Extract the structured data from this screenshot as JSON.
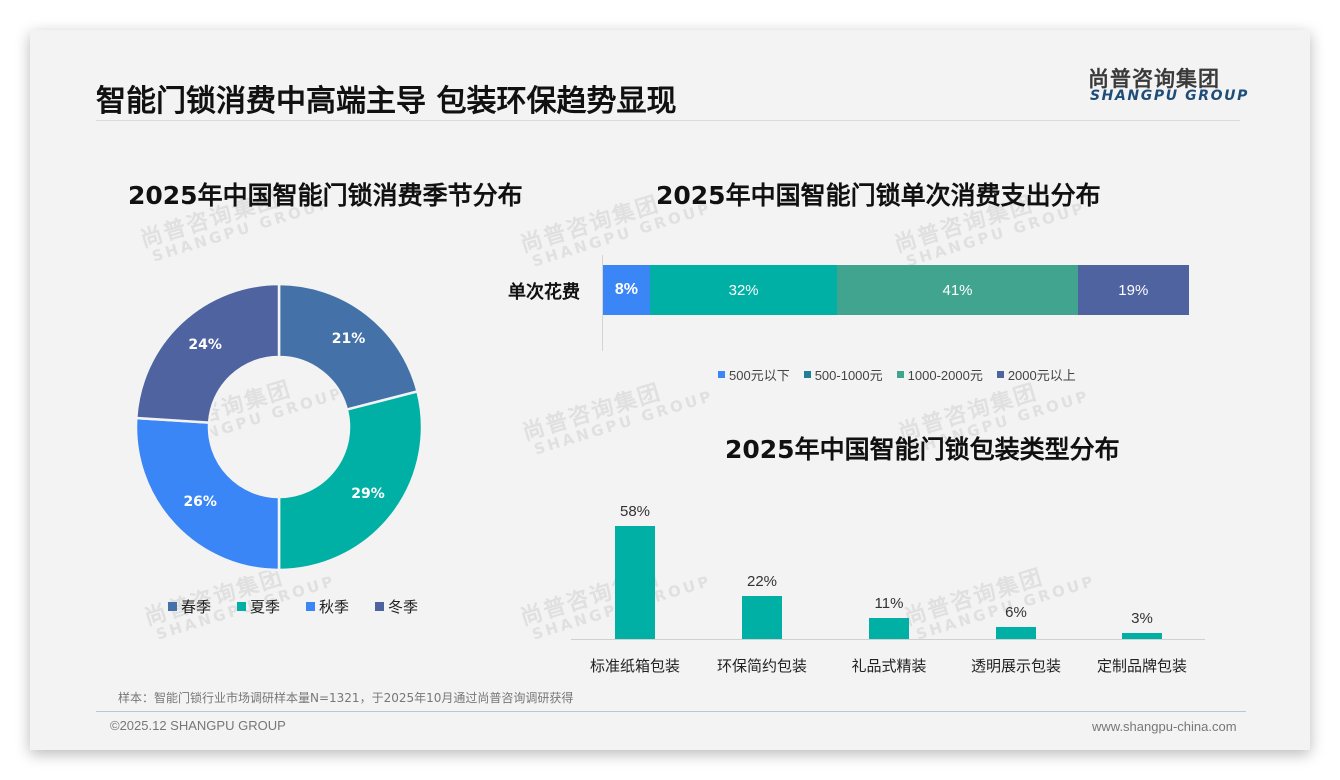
{
  "header": {
    "title": "智能门锁消费中高端主导 包装环保趋势显现",
    "logo_cn": "尚普咨询集团",
    "logo_en": "SHANGPU GROUP"
  },
  "watermark": {
    "cn": "尚普咨询集团",
    "en": "SHANGPU GROUP"
  },
  "colors": {
    "spring": "#4472a8",
    "summer": "#00b0a5",
    "autumn": "#3b86f7",
    "winter": "#4e63a0",
    "under500": "#3b86f7",
    "r500_1000": "#00b0a5",
    "r500_1000_legend": "#1f7f96",
    "r1000_2000": "#40a48f",
    "over2000": "#4e63a0",
    "packaging_bar": "#00b0a5"
  },
  "chart_data": [
    {
      "type": "pie",
      "variant": "donut",
      "title": "2025年中国智能门锁消费季节分布",
      "categories": [
        "春季",
        "夏季",
        "秋季",
        "冬季"
      ],
      "values": [
        21,
        29,
        26,
        24
      ],
      "labels": [
        "21%",
        "29%",
        "26%",
        "24%"
      ],
      "unit": "%",
      "legend_position": "bottom"
    },
    {
      "type": "bar",
      "orientation": "horizontal",
      "stacked": true,
      "title": "2025年中国智能门锁单次消费支出分布",
      "categories": [
        "单次花费"
      ],
      "series": [
        {
          "name": "500元以下",
          "values": [
            8
          ],
          "label": "8%"
        },
        {
          "name": "500-1000元",
          "values": [
            32
          ],
          "label": "32%"
        },
        {
          "name": "1000-2000元",
          "values": [
            41
          ],
          "label": "41%"
        },
        {
          "name": "2000元以上",
          "values": [
            19
          ],
          "label": "19%"
        }
      ],
      "xlim": [
        0,
        100
      ],
      "legend_position": "bottom",
      "grid": false
    },
    {
      "type": "bar",
      "title": "2025年中国智能门锁包装类型分布",
      "categories": [
        "标准纸箱包装",
        "环保简约包装",
        "礼品式精装",
        "透明展示包装",
        "定制品牌包装"
      ],
      "values": [
        58,
        22,
        11,
        6,
        3
      ],
      "labels": [
        "58%",
        "22%",
        "11%",
        "6%",
        "3%"
      ],
      "xlabel": "",
      "ylabel": "",
      "ylim": [
        0,
        60
      ],
      "grid": false
    }
  ],
  "donut": {
    "title": "2025年中国智能门锁消费季节分布",
    "segments": [
      {
        "name": "春季",
        "value": 21,
        "label": "21%"
      },
      {
        "name": "夏季",
        "value": 29,
        "label": "29%"
      },
      {
        "name": "秋季",
        "value": 26,
        "label": "26%"
      },
      {
        "name": "冬季",
        "value": 24,
        "label": "24%"
      }
    ]
  },
  "stacked": {
    "title": "2025年中国智能门锁单次消费支出分布",
    "row_label": "单次花费",
    "segments": [
      {
        "name": "500元以下",
        "value": 8,
        "label": "8%"
      },
      {
        "name": "500-1000元",
        "value": 32,
        "label": "32%"
      },
      {
        "name": "1000-2000元",
        "value": 41,
        "label": "41%"
      },
      {
        "name": "2000元以上",
        "value": 19,
        "label": "19%"
      }
    ]
  },
  "packaging": {
    "title": "2025年中国智能门锁包装类型分布",
    "bars": [
      {
        "name": "标准纸箱包装",
        "value": 58,
        "label": "58%"
      },
      {
        "name": "环保简约包装",
        "value": 22,
        "label": "22%"
      },
      {
        "name": "礼品式精装",
        "value": 11,
        "label": "11%"
      },
      {
        "name": "透明展示包装",
        "value": 6,
        "label": "6%"
      },
      {
        "name": "定制品牌包装",
        "value": 3,
        "label": "3%"
      }
    ]
  },
  "footer": {
    "note": "样本：智能门锁行业市场调研样本量N=1321，于2025年10月通过尚普咨询调研获得",
    "copyright": "©2025.12 SHANGPU GROUP",
    "website": "www.shangpu-china.com"
  }
}
